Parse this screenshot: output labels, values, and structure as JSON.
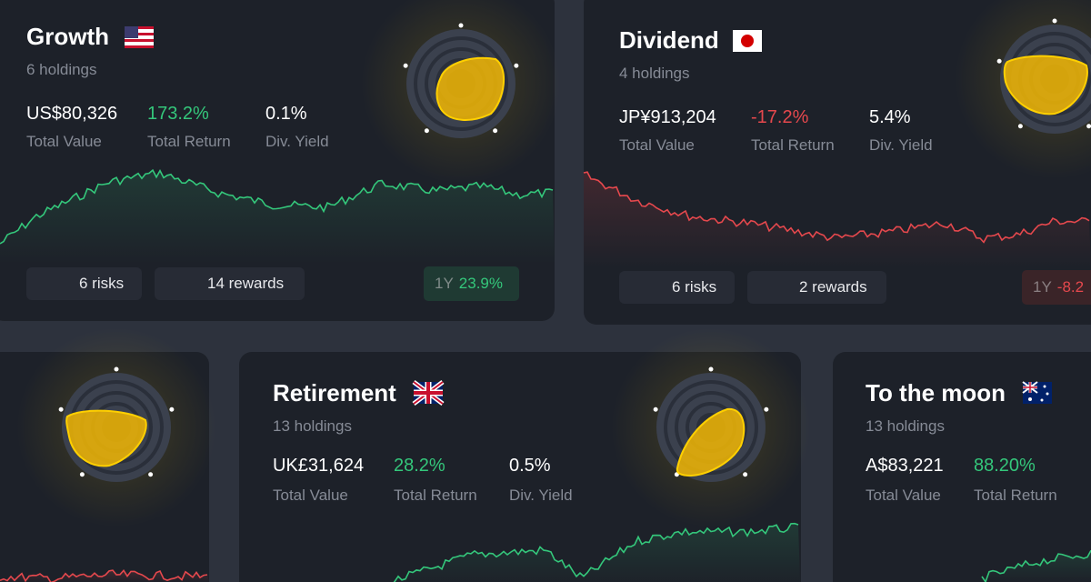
{
  "cards": [
    {
      "name": "Growth",
      "holdings": "6 holdings",
      "stats": [
        {
          "value": "US$80,326",
          "label": "Total Value"
        },
        {
          "value": "173.2%",
          "label": "Total Return"
        },
        {
          "value": "0.1%",
          "label": "Div. Yield"
        }
      ],
      "risks": "6 risks",
      "rewards": "14 rewards",
      "period": "1Y",
      "period_return": "23.9%"
    },
    {
      "name": "Dividend",
      "holdings": "4 holdings",
      "stats": [
        {
          "value": "JP¥913,204",
          "label": "Total Value"
        },
        {
          "value": "-17.2%",
          "label": "Total Return"
        },
        {
          "value": "5.4%",
          "label": "Div. Yield"
        }
      ],
      "risks": "6 risks",
      "rewards": "2 rewards",
      "period": "1Y",
      "period_return": "-8.2"
    },
    {
      "name": "Retirement",
      "holdings": "13 holdings",
      "stats": [
        {
          "value": "UK£31,624",
          "label": "Total Value"
        },
        {
          "value": "28.2%",
          "label": "Total Return"
        },
        {
          "value": "0.5%",
          "label": "Div. Yield"
        }
      ]
    },
    {
      "name": "To the moon",
      "holdings": "13 holdings",
      "stats": [
        {
          "value": "A$83,221",
          "label": "Total Value"
        },
        {
          "value": "88.20%",
          "label": "Total Return"
        }
      ]
    }
  ]
}
